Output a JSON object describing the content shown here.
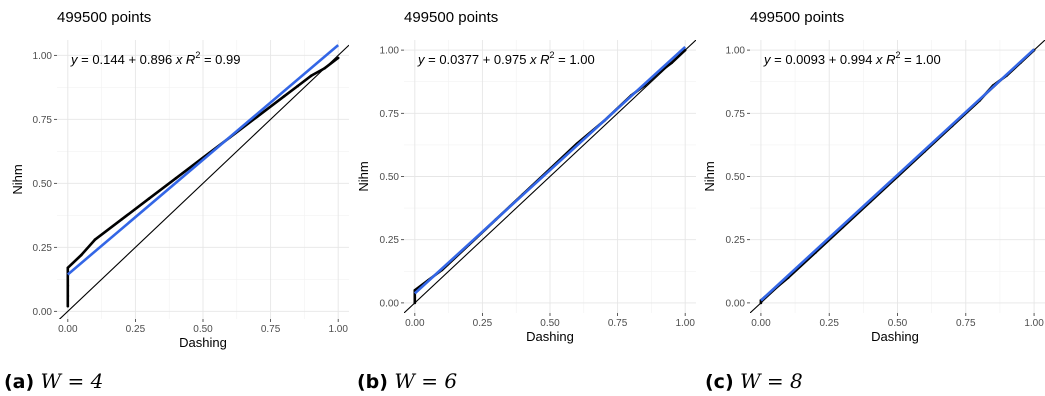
{
  "chart_data": [
    {
      "type": "scatter",
      "title": "499500  points",
      "xlabel": "Dashing",
      "ylabel": "Nihm",
      "xlim": [
        -0.04,
        1.04
      ],
      "ylim": [
        -0.03,
        1.06
      ],
      "xticks": [
        "0.00",
        "0.25",
        "0.50",
        "0.75",
        "1.00"
      ],
      "yticks": [
        "0.00",
        "0.25",
        "0.50",
        "0.75",
        "1.00"
      ],
      "grid": true,
      "fit": {
        "intercept": 0.144,
        "slope": 0.896,
        "color": "#3366e6"
      },
      "reference_line": {
        "intercept": 0,
        "slope": 1,
        "color": "#000000"
      },
      "equation": {
        "lhs": "y",
        "eq": "= 0.144 + 0.896",
        "x": "x",
        "r2_label": "R",
        "sup": "2",
        "r2_value": "= 0.99"
      },
      "points": [
        [
          0.0,
          0.02
        ],
        [
          0.0,
          0.06
        ],
        [
          0.0,
          0.1
        ],
        [
          0.0,
          0.14
        ],
        [
          0.0,
          0.17
        ],
        [
          0.05,
          0.22
        ],
        [
          0.1,
          0.28
        ],
        [
          0.2,
          0.36
        ],
        [
          0.3,
          0.44
        ],
        [
          0.4,
          0.52
        ],
        [
          0.5,
          0.6
        ],
        [
          0.6,
          0.68
        ],
        [
          0.7,
          0.76
        ],
        [
          0.8,
          0.84
        ],
        [
          0.85,
          0.88
        ],
        [
          0.9,
          0.92
        ],
        [
          0.95,
          0.95
        ],
        [
          1.0,
          0.99
        ]
      ],
      "caption": {
        "letter": "(a)",
        "equation": "W = 4"
      }
    },
    {
      "type": "scatter",
      "title": "499500  points",
      "xlabel": "Dashing",
      "ylabel": "Nihm",
      "xlim": [
        -0.04,
        1.04
      ],
      "ylim": [
        -0.04,
        1.04
      ],
      "xticks": [
        "0.00",
        "0.25",
        "0.50",
        "0.75",
        "1.00"
      ],
      "yticks": [
        "0.00",
        "0.25",
        "0.50",
        "0.75",
        "1.00"
      ],
      "grid": true,
      "fit": {
        "intercept": 0.0377,
        "slope": 0.975,
        "color": "#3366e6"
      },
      "reference_line": {
        "intercept": 0,
        "slope": 1,
        "color": "#000000"
      },
      "equation": {
        "lhs": "y",
        "eq": "= 0.0377 + 0.975",
        "x": "x",
        "r2_label": "R",
        "sup": "2",
        "r2_value": "= 1.00"
      },
      "points": [
        [
          0.0,
          0.0
        ],
        [
          0.0,
          0.02
        ],
        [
          0.0,
          0.05
        ],
        [
          0.05,
          0.09
        ],
        [
          0.1,
          0.13
        ],
        [
          0.2,
          0.23
        ],
        [
          0.3,
          0.33
        ],
        [
          0.4,
          0.43
        ],
        [
          0.5,
          0.53
        ],
        [
          0.6,
          0.63
        ],
        [
          0.7,
          0.72
        ],
        [
          0.8,
          0.82
        ],
        [
          0.85,
          0.86
        ],
        [
          0.9,
          0.91
        ],
        [
          0.95,
          0.95
        ],
        [
          1.0,
          1.0
        ]
      ],
      "caption": {
        "letter": "(b)",
        "equation": "W = 6"
      }
    },
    {
      "type": "scatter",
      "title": "499500  points",
      "xlabel": "Dashing",
      "ylabel": "Nihm",
      "xlim": [
        -0.04,
        1.04
      ],
      "ylim": [
        -0.04,
        1.04
      ],
      "xticks": [
        "0.00",
        "0.25",
        "0.50",
        "0.75",
        "1.00"
      ],
      "yticks": [
        "0.00",
        "0.25",
        "0.50",
        "0.75",
        "1.00"
      ],
      "grid": true,
      "fit": {
        "intercept": 0.0093,
        "slope": 0.994,
        "color": "#3366e6"
      },
      "reference_line": {
        "intercept": 0,
        "slope": 1,
        "color": "#000000"
      },
      "equation": {
        "lhs": "y",
        "eq": "= 0.0093 + 0.994",
        "x": "x",
        "r2_label": "R",
        "sup": "2",
        "r2_value": "= 1.00"
      },
      "points": [
        [
          0.0,
          0.0
        ],
        [
          0.0,
          0.01
        ],
        [
          0.1,
          0.1
        ],
        [
          0.2,
          0.2
        ],
        [
          0.3,
          0.3
        ],
        [
          0.4,
          0.4
        ],
        [
          0.5,
          0.5
        ],
        [
          0.6,
          0.6
        ],
        [
          0.7,
          0.7
        ],
        [
          0.8,
          0.8
        ],
        [
          0.85,
          0.86
        ],
        [
          0.9,
          0.9
        ],
        [
          0.95,
          0.95
        ],
        [
          1.0,
          1.0
        ]
      ],
      "caption": {
        "letter": "(c)",
        "equation": "W = 8"
      }
    }
  ]
}
